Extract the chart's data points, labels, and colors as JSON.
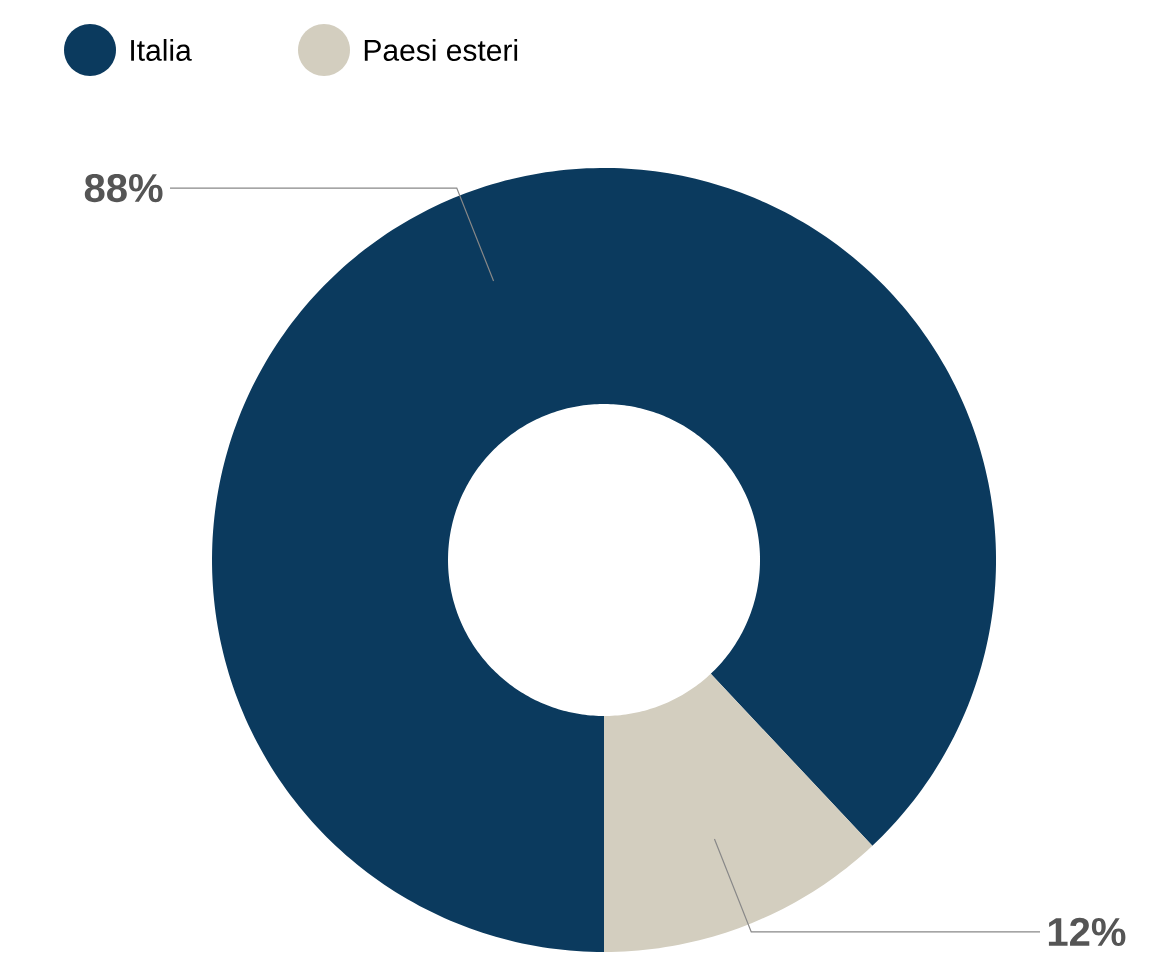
{
  "chart_data": {
    "type": "donut",
    "categories": [
      "Italia",
      "Paesi esteri"
    ],
    "values": [
      88,
      12
    ],
    "colors": [
      "#0b3a5e",
      "#d3cebf"
    ],
    "value_labels": [
      "88%",
      "12%"
    ],
    "legend": "top left"
  }
}
